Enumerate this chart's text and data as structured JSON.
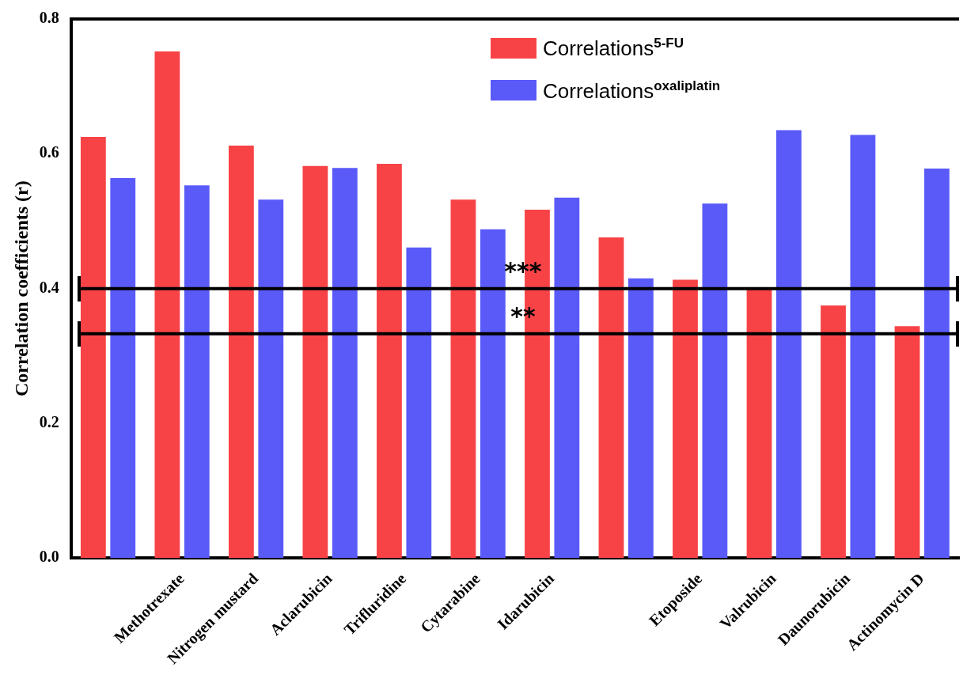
{
  "chart_data": {
    "type": "bar",
    "ylabel": "Correlation coefficients (r)",
    "categories": [
      null,
      "Methotrexate",
      "Nitrogen mustard",
      "Aclarubicin",
      "Trifluridine",
      "Cytarabine",
      "Idarubicin",
      null,
      "Etoposide",
      "Valrubicin",
      "Daunorubicin",
      "Actinomycin D"
    ],
    "series": [
      {
        "name": "Correlations$^{5-FU}$",
        "color": "#f84346",
        "values": [
          0.625,
          0.752,
          0.612,
          0.582,
          0.585,
          0.532,
          0.517,
          0.476,
          0.413,
          0.4,
          0.375,
          0.344
        ]
      },
      {
        "name": "Correlations$^{oxaliplatin}$",
        "color": "#5a5af8",
        "values": [
          0.564,
          0.553,
          0.532,
          0.579,
          0.461,
          0.488,
          0.535,
          0.415,
          0.526,
          0.635,
          0.628,
          0.578
        ]
      }
    ],
    "ylim": [
      0,
      0.8
    ],
    "yticks": [
      {
        "value": 0,
        "label": "0.0"
      },
      {
        "value": 0.2,
        "label": "0.2"
      },
      {
        "value": 0.4,
        "label": "0.4"
      },
      {
        "value": 0.6,
        "label": "0.6"
      },
      {
        "value": 0.8,
        "label": "0.8"
      }
    ],
    "ref_lines": [
      {
        "axis": "y",
        "value": 0.4,
        "label": "***",
        "color": "#000000"
      },
      {
        "axis": "y",
        "value": 0.333,
        "label": "**",
        "color": "#000000"
      }
    ],
    "grid": false,
    "legend": "top right"
  }
}
